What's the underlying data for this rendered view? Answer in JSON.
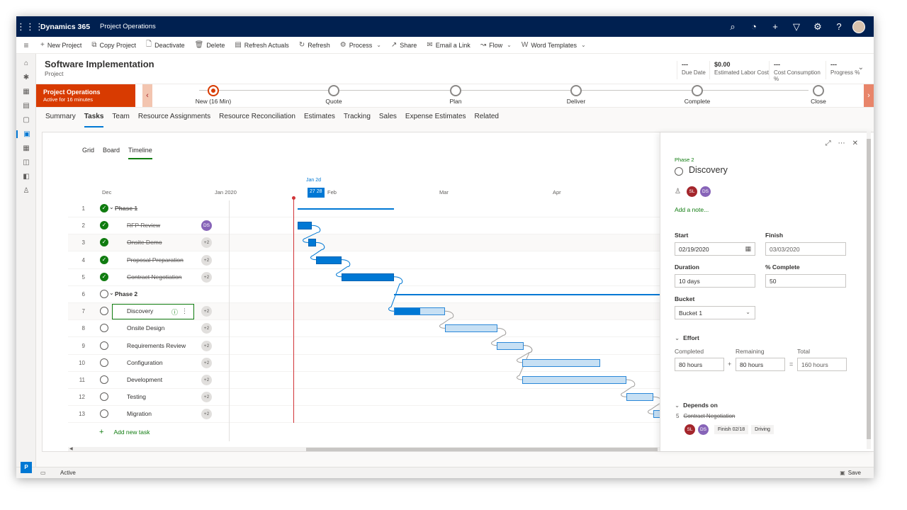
{
  "topbar": {
    "app_name": "Dynamics 365",
    "module": "Project Operations",
    "icons": [
      "search-icon",
      "assistant-icon",
      "add-icon",
      "filter-icon",
      "settings-icon",
      "help-icon"
    ]
  },
  "commands": [
    {
      "icon": "+",
      "name": "new-project-button",
      "label": "New Project"
    },
    {
      "icon": "⧉",
      "name": "copy-project-button",
      "label": "Copy Project"
    },
    {
      "icon": "🗋",
      "name": "deactivate-button",
      "label": "Deactivate"
    },
    {
      "icon": "🗑",
      "name": "delete-button",
      "label": "Delete"
    },
    {
      "icon": "▤",
      "name": "refresh-actuals-button",
      "label": "Refresh Actuals"
    },
    {
      "icon": "↻",
      "name": "refresh-button",
      "label": "Refresh"
    },
    {
      "icon": "⚙",
      "name": "process-button",
      "label": "Process",
      "chevron": true
    },
    {
      "icon": "↗",
      "name": "share-button",
      "label": "Share"
    },
    {
      "icon": "✉",
      "name": "email-link-button",
      "label": "Email a Link"
    },
    {
      "icon": "↝",
      "name": "flow-button",
      "label": "Flow",
      "chevron": true
    },
    {
      "icon": "W",
      "name": "word-templates-button",
      "label": "Word Templates",
      "chevron": true
    }
  ],
  "record": {
    "title": "Software Implementation",
    "type": "Project",
    "fields": [
      {
        "name": "due-date-field",
        "value": "---",
        "label": "Due Date"
      },
      {
        "name": "estimated-labor-cost-field",
        "value": "$0.00",
        "label": "Estimated Labor Cost"
      },
      {
        "name": "cost-consumption-field",
        "value": "---",
        "label": "Cost Consumption %"
      },
      {
        "name": "progress-field",
        "value": "---",
        "label": "Progress %"
      }
    ]
  },
  "bpf": {
    "process_name": "Project Operations",
    "active_for": "Active for 16 minutes",
    "stages": [
      {
        "label": "New  (16 Min)",
        "current": true
      },
      {
        "label": "Quote"
      },
      {
        "label": "Plan"
      },
      {
        "label": "Deliver"
      },
      {
        "label": "Complete"
      },
      {
        "label": "Close"
      }
    ]
  },
  "tabs": [
    "Summary",
    "Tasks",
    "Team",
    "Resource Assignments",
    "Resource Reconciliation",
    "Estimates",
    "Tracking",
    "Sales",
    "Expense Estimates",
    "Related"
  ],
  "active_tab": "Tasks",
  "subtabs": [
    "Grid",
    "Board",
    "Timeline"
  ],
  "active_subtab": "Timeline",
  "timeline_axis": {
    "today_top": "Jan 2d",
    "today_badge": "27 28",
    "months": [
      "Dec",
      "Jan 2020",
      "Feb",
      "Mar",
      "Apr"
    ]
  },
  "tasks": [
    {
      "num": "1",
      "name": "Phase 1",
      "phase": true,
      "done": true
    },
    {
      "num": "2",
      "name": "RFP Review",
      "done": true,
      "res": "DS"
    },
    {
      "num": "3",
      "name": "Onsite Demo",
      "done": true,
      "res": "+2"
    },
    {
      "num": "4",
      "name": "Proposal Preparation",
      "done": true,
      "res": "+2"
    },
    {
      "num": "5",
      "name": "Contract Negotiation",
      "done": true,
      "res": "+2"
    },
    {
      "num": "6",
      "name": "Phase 2",
      "phase": true,
      "done": false
    },
    {
      "num": "7",
      "name": "Discovery",
      "done": false,
      "res": "+2",
      "selected": true
    },
    {
      "num": "8",
      "name": "Onsite Design",
      "done": false,
      "res": "+2"
    },
    {
      "num": "9",
      "name": "Requirements Review",
      "done": false,
      "res": "+2"
    },
    {
      "num": "10",
      "name": "Configuration",
      "done": false,
      "res": "+2"
    },
    {
      "num": "11",
      "name": "Development",
      "done": false,
      "res": "+2"
    },
    {
      "num": "12",
      "name": "Testing",
      "done": false,
      "res": "+2"
    },
    {
      "num": "13",
      "name": "Migration",
      "done": false,
      "res": "+2"
    }
  ],
  "add_task_label": "Add new task",
  "pane": {
    "phase": "Phase 2",
    "title": "Discovery",
    "assignees": [
      "SL",
      "DS"
    ],
    "add_note": "Add a note...",
    "start_label": "Start",
    "start_value": "02/19/2020",
    "finish_label": "Finish",
    "finish_value": "03/03/2020",
    "duration_label": "Duration",
    "duration_value": "10 days",
    "complete_label": "% Complete",
    "complete_value": "50",
    "bucket_label": "Bucket",
    "bucket_value": "Bucket 1",
    "effort_label": "Effort",
    "completed_label": "Completed",
    "completed_value": "80 hours",
    "remaining_label": "Remaining",
    "remaining_value": "80 hours",
    "total_label": "Total",
    "total_value": "160 hours",
    "plus_sign": "+",
    "equals_sign": "=",
    "depends_label": "Depends on",
    "dep_num": "5",
    "dep_name": "Contract Negotiation",
    "dep_finish": "Finish 02/18",
    "dep_type": "Driving"
  },
  "status": {
    "state": "Active",
    "save": "Save",
    "app_badge": "P"
  }
}
